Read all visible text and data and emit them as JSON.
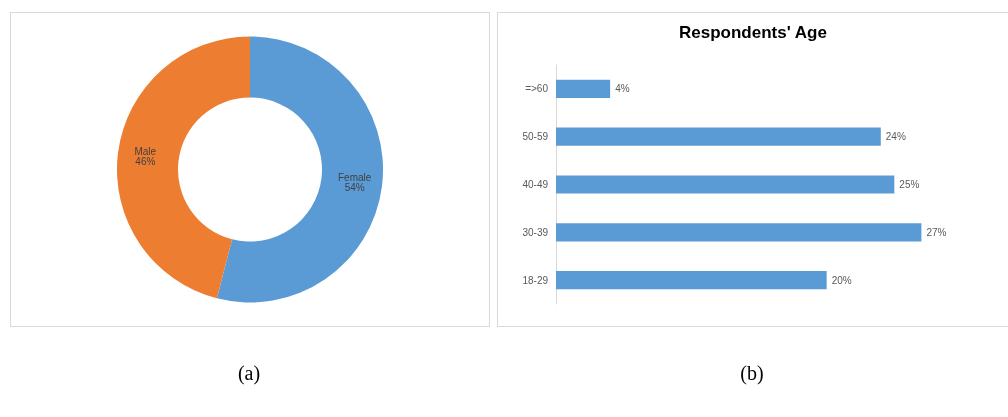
{
  "chart_data": [
    {
      "type": "donut",
      "categories": [
        "Female",
        "Male"
      ],
      "values": [
        54,
        46
      ],
      "colors": [
        "#5b9bd5",
        "#ed7d31"
      ],
      "value_labels": [
        "54%",
        "46%"
      ],
      "legend": false,
      "annotations": [
        "(a)"
      ]
    },
    {
      "type": "bar",
      "orientation": "horizontal",
      "title": "Respondents' Age",
      "categories": [
        "=>60",
        "50-59",
        "40-49",
        "30-39",
        "18-29"
      ],
      "values": [
        4,
        24,
        25,
        27,
        20
      ],
      "color": "#5b9bd5",
      "value_labels": [
        "4%",
        "24%",
        "25%",
        "27%",
        "20%"
      ],
      "grid": false,
      "legend": false,
      "annotations": [
        "(b)"
      ]
    }
  ]
}
